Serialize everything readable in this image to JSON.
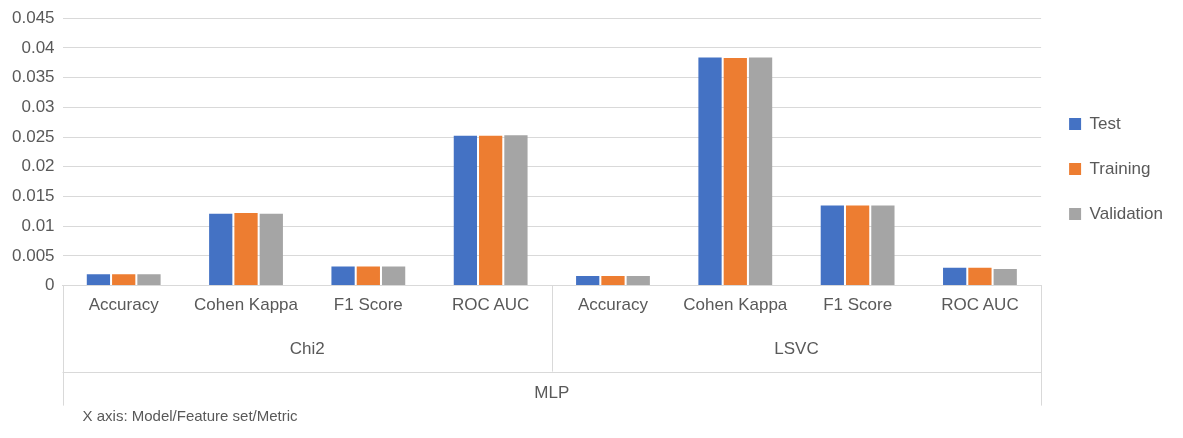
{
  "chart_data": {
    "type": "bar",
    "categories": [
      "Accuracy",
      "Cohen Kappa",
      "F1 Score",
      "ROC AUC",
      "Accuracy",
      "Cohen Kappa",
      "F1 Score",
      "ROC AUC"
    ],
    "series": [
      {
        "name": "Test",
        "color": "#4472c4",
        "values": [
          0.0019,
          0.0121,
          0.0032,
          0.0252,
          0.0016,
          0.0384,
          0.0135,
          0.003
        ]
      },
      {
        "name": "Training",
        "color": "#ed7d31",
        "values": [
          0.0019,
          0.0122,
          0.0032,
          0.0252,
          0.0016,
          0.0383,
          0.0135,
          0.003
        ]
      },
      {
        "name": "Validation",
        "color": "#a5a5a5",
        "values": [
          0.0019,
          0.0121,
          0.0032,
          0.0253,
          0.0016,
          0.0384,
          0.0135,
          0.0028
        ]
      }
    ],
    "ylim": [
      0,
      0.045
    ],
    "yticks": [
      0,
      0.005,
      0.01,
      0.015,
      0.02,
      0.025,
      0.03,
      0.035,
      0.04,
      0.045
    ],
    "grid": "y",
    "legend": "right",
    "annotations": [
      "Chi2",
      "LSVC",
      "MLP",
      "X axis: Model/Feature set/Metric"
    ]
  }
}
